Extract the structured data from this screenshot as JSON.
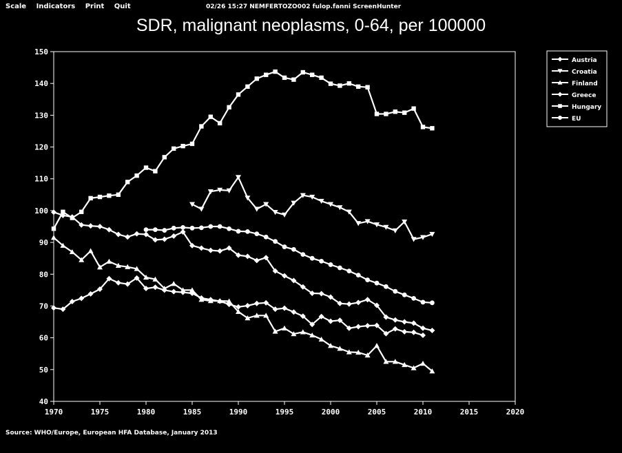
{
  "menu": {
    "scale": "Scale",
    "indicators": "Indicators",
    "print": "Print",
    "quit": "Quit"
  },
  "status_line": "02/26  15:27  NEMFERTOZO002  fulop.fanni  ScreenHunter",
  "source": "Source: WHO/Europe, European HFA Database, January 2013",
  "colors": {
    "background": "#000000",
    "foreground": "#ffffff"
  },
  "chart_data": {
    "type": "line",
    "title": "SDR, malignant neoplasms, 0-64, per 100000",
    "xlabel": "",
    "ylabel": "",
    "xlim": [
      1970,
      2020
    ],
    "ylim": [
      40,
      150
    ],
    "xticks": [
      "1970",
      "1975",
      "1980",
      "1985",
      "1990",
      "1995",
      "2000",
      "2005",
      "2010",
      "2015",
      "2020"
    ],
    "yticks": [
      "40",
      "50",
      "60",
      "70",
      "80",
      "90",
      "100",
      "110",
      "120",
      "130",
      "140",
      "150"
    ],
    "grid": false,
    "legend_position": "top-right",
    "series": [
      {
        "name": "Austria",
        "marker": "diamond",
        "x": [
          1970,
          1971,
          1972,
          1973,
          1974,
          1975,
          1976,
          1977,
          1978,
          1979,
          1980,
          1981,
          1982,
          1983,
          1984,
          1985,
          1986,
          1987,
          1988,
          1989,
          1990,
          1991,
          1992,
          1993,
          1994,
          1995,
          1996,
          1997,
          1998,
          1999,
          2000,
          2001,
          2002,
          2003,
          2004,
          2005,
          2006,
          2007,
          2008,
          2009,
          2010,
          2011
        ],
        "values": [
          99.5,
          98.5,
          98,
          95.5,
          95.2,
          95,
          94,
          92.5,
          91.7,
          92.7,
          92.5,
          90.8,
          91,
          92,
          93.3,
          89,
          88.2,
          87.5,
          87.3,
          88.2,
          86,
          85.6,
          84.3,
          85.2,
          81,
          79.5,
          78,
          76,
          74,
          73.9,
          72.8,
          70.8,
          70.6,
          71.1,
          72,
          70.2,
          66.5,
          65.6,
          65,
          64.6,
          63,
          62.3
        ]
      },
      {
        "name": "Croatia",
        "marker": "triangle-down",
        "x": [
          1985,
          1986,
          1987,
          1988,
          1989,
          1990,
          1991,
          1992,
          1993,
          1994,
          1995,
          1996,
          1997,
          1998,
          1999,
          2000,
          2001,
          2002,
          2003,
          2004,
          2005,
          2006,
          2007,
          2008,
          2009,
          2010,
          2011
        ],
        "values": [
          102,
          100.5,
          106,
          106.5,
          106.3,
          110.5,
          104,
          100.5,
          102,
          99.5,
          98.7,
          102.4,
          104.8,
          104.3,
          103,
          102,
          101,
          99.6,
          96,
          96.6,
          95.6,
          94.8,
          93.7,
          96.5,
          91,
          91.6,
          92.6
        ]
      },
      {
        "name": "Finland",
        "marker": "triangle-up",
        "x": [
          1970,
          1971,
          1972,
          1973,
          1974,
          1975,
          1976,
          1977,
          1978,
          1979,
          1980,
          1981,
          1982,
          1983,
          1984,
          1985,
          1986,
          1987,
          1988,
          1989,
          1990,
          1991,
          1992,
          1993,
          1994,
          1995,
          1996,
          1997,
          1998,
          1999,
          2000,
          2001,
          2002,
          2003,
          2004,
          2005,
          2006,
          2007,
          2008,
          2009,
          2010,
          2011
        ],
        "values": [
          91.5,
          89,
          87,
          84.5,
          87.3,
          82.2,
          84,
          82.7,
          82.3,
          81.7,
          79,
          78.4,
          75.5,
          77,
          75,
          75,
          72,
          71.6,
          71.6,
          71.5,
          68.2,
          66.2,
          67,
          67,
          62,
          63,
          61.2,
          61.8,
          60.8,
          59.5,
          57.5,
          56.6,
          55.5,
          55.4,
          54.5,
          57.5,
          52.5,
          52.5,
          51.5,
          50.5,
          51.9,
          49.5
        ]
      },
      {
        "name": "Greece",
        "marker": "diamond",
        "x": [
          1970,
          1971,
          1972,
          1973,
          1974,
          1975,
          1976,
          1977,
          1978,
          1979,
          1980,
          1981,
          1982,
          1983,
          1984,
          1985,
          1986,
          1987,
          1988,
          1989,
          1990,
          1991,
          1992,
          1993,
          1994,
          1995,
          1996,
          1997,
          1998,
          1999,
          2000,
          2001,
          2002,
          2003,
          2004,
          2005,
          2006,
          2007,
          2008,
          2009,
          2010
        ],
        "values": [
          69.4,
          69,
          71.4,
          72.4,
          73.8,
          75.3,
          78.6,
          77.3,
          76.9,
          78.8,
          75.5,
          75.9,
          75,
          74.5,
          74.3,
          74,
          72.5,
          72,
          71.5,
          70.5,
          69.7,
          70.1,
          70.8,
          71,
          69,
          69.3,
          68.1,
          66.8,
          64.2,
          66.7,
          65.2,
          65.5,
          63,
          63.5,
          63.8,
          63.9,
          61.3,
          62.8,
          61.9,
          61.7,
          60.8
        ]
      },
      {
        "name": "Hungary",
        "marker": "square",
        "x": [
          1970,
          1971,
          1972,
          1973,
          1974,
          1975,
          1976,
          1977,
          1978,
          1979,
          1980,
          1981,
          1982,
          1983,
          1984,
          1985,
          1986,
          1987,
          1988,
          1989,
          1990,
          1991,
          1992,
          1993,
          1994,
          1995,
          1996,
          1997,
          1998,
          1999,
          2000,
          2001,
          2002,
          2003,
          2004,
          2005,
          2006,
          2007,
          2008,
          2009,
          2010,
          2011
        ],
        "values": [
          94.3,
          99.6,
          97.7,
          99.6,
          103.9,
          104.3,
          104.7,
          105,
          109,
          111,
          113.5,
          112.4,
          116.8,
          119.5,
          120.3,
          121,
          126.5,
          129.5,
          127.5,
          132.5,
          136.5,
          139,
          141.5,
          142.7,
          143.7,
          141.8,
          141.2,
          143.5,
          142.7,
          141.8,
          139.9,
          139.3,
          140,
          139,
          138.8,
          130.4,
          130.4,
          131.1,
          130.8,
          132.1,
          126.3,
          125.9
        ]
      },
      {
        "name": "EU",
        "marker": "circle",
        "x": [
          1980,
          1981,
          1982,
          1983,
          1984,
          1985,
          1986,
          1987,
          1988,
          1989,
          1990,
          1991,
          1992,
          1993,
          1994,
          1995,
          1996,
          1997,
          1998,
          1999,
          2000,
          2001,
          2002,
          2003,
          2004,
          2005,
          2006,
          2007,
          2008,
          2009,
          2010,
          2011
        ],
        "values": [
          94,
          94,
          93.8,
          94.5,
          94.7,
          94.5,
          94.6,
          95,
          95,
          94.3,
          93.5,
          93.4,
          92.7,
          91.7,
          90.3,
          88.6,
          87.8,
          86.2,
          85,
          84.1,
          83,
          82,
          81,
          79.7,
          78.2,
          77.2,
          76.1,
          74.6,
          73.5,
          72.4,
          71.2,
          71
        ]
      }
    ]
  }
}
